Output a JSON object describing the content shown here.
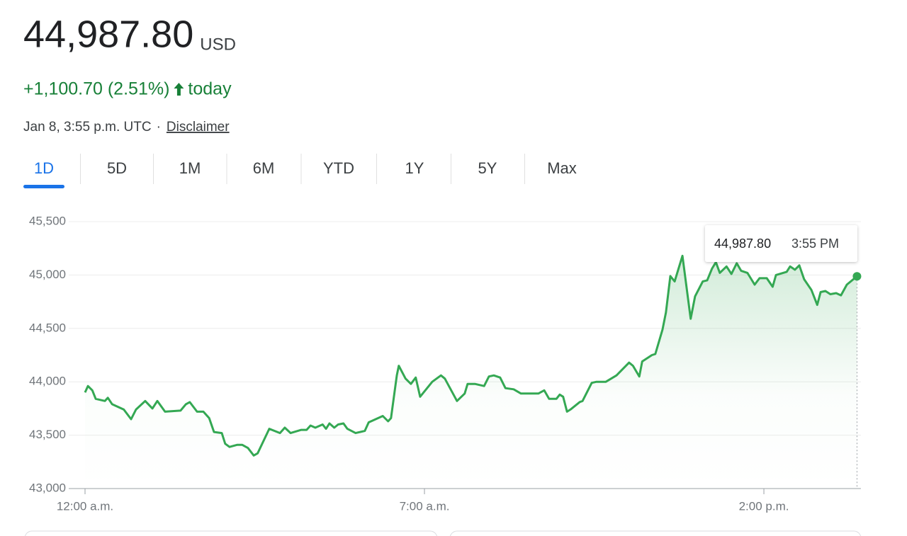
{
  "header": {
    "price": "44,987.80",
    "currency": "USD",
    "change": "+1,100.70 (2.51%)",
    "change_suffix": "today",
    "timestamp": "Jan 8, 3:55 p.m. UTC",
    "separator": "·",
    "disclaimer": "Disclaimer"
  },
  "tabs": {
    "items": [
      "1D",
      "5D",
      "1M",
      "6M",
      "YTD",
      "1Y",
      "5Y",
      "Max"
    ],
    "active": 0
  },
  "tooltip": {
    "value": "44,987.80",
    "time": "3:55 PM"
  },
  "chart_data": {
    "type": "line",
    "color": "#34a853",
    "grid": true,
    "xlim": [
      0,
      16
    ],
    "xticks": [
      {
        "value": 0,
        "label": "12:00 a.m."
      },
      {
        "value": 7,
        "label": "7:00 a.m."
      },
      {
        "value": 14,
        "label": "2:00 p.m."
      }
    ],
    "ylim": [
      43000,
      45500
    ],
    "yticks": [
      {
        "value": 43000,
        "label": "43,000"
      },
      {
        "value": 43500,
        "label": "43,500"
      },
      {
        "value": 44000,
        "label": "44,000"
      },
      {
        "value": 44500,
        "label": "44,500"
      },
      {
        "value": 45000,
        "label": "45,000"
      },
      {
        "value": 45500,
        "label": "45,500"
      }
    ],
    "x": [
      0,
      0.06,
      0.15,
      0.22,
      0.41,
      0.47,
      0.56,
      0.8,
      0.95,
      1.05,
      1.24,
      1.39,
      1.49,
      1.65,
      1.97,
      2.08,
      2.16,
      2.31,
      2.44,
      2.56,
      2.66,
      2.82,
      2.89,
      2.98,
      3.14,
      3.24,
      3.36,
      3.48,
      3.56,
      3.8,
      4.02,
      4.12,
      4.24,
      4.46,
      4.57,
      4.65,
      4.75,
      4.9,
      4.97,
      5.04,
      5.14,
      5.22,
      5.33,
      5.41,
      5.58,
      5.77,
      5.85,
      6.14,
      6.25,
      6.31,
      6.43,
      6.47,
      6.61,
      6.72,
      6.82,
      6.91,
      7.16,
      7.34,
      7.42,
      7.67,
      7.83,
      7.89,
      8.04,
      8.23,
      8.33,
      8.43,
      8.56,
      8.67,
      8.84,
      8.99,
      9.35,
      9.47,
      9.57,
      9.72,
      9.79,
      9.86,
      9.94,
      10.01,
      10.2,
      10.26,
      10.45,
      10.55,
      10.74,
      10.96,
      11.22,
      11.3,
      11.43,
      11.49,
      11.69,
      11.76,
      11.91,
      11.98,
      12.07,
      12.16,
      12.32,
      12.49,
      12.58,
      12.74,
      12.83,
      12.93,
      13.01,
      13.09,
      13.23,
      13.33,
      13.44,
      13.53,
      13.66,
      13.81,
      13.91,
      14.06,
      14.18,
      14.25,
      14.47,
      14.54,
      14.64,
      14.73,
      14.83,
      14.98,
      15.1,
      15.17,
      15.27,
      15.37,
      15.49,
      15.59,
      15.71,
      15.92
    ],
    "values": [
      43900,
      43960,
      43920,
      43840,
      43820,
      43850,
      43790,
      43740,
      43650,
      43740,
      43820,
      43750,
      43820,
      43720,
      43730,
      43790,
      43810,
      43720,
      43720,
      43660,
      43530,
      43520,
      43420,
      43390,
      43410,
      43410,
      43380,
      43310,
      43330,
      43560,
      43520,
      43570,
      43520,
      43550,
      43550,
      43590,
      43570,
      43600,
      43560,
      43610,
      43570,
      43600,
      43610,
      43560,
      43520,
      43540,
      43620,
      43680,
      43630,
      43660,
      44060,
      44150,
      44030,
      43980,
      44040,
      43860,
      44000,
      44060,
      44030,
      43820,
      43890,
      43980,
      43980,
      43960,
      44050,
      44060,
      44040,
      43940,
      43930,
      43890,
      43890,
      43920,
      43840,
      43840,
      43880,
      43860,
      43720,
      43740,
      43810,
      43820,
      43990,
      44000,
      44000,
      44060,
      44180,
      44150,
      44050,
      44190,
      44250,
      44260,
      44490,
      44650,
      44990,
      44940,
      45180,
      44590,
      44800,
      44940,
      44950,
      45060,
      45120,
      45020,
      45080,
      45010,
      45110,
      45040,
      45020,
      44910,
      44970,
      44970,
      44890,
      45000,
      45030,
      45080,
      45050,
      45090,
      44960,
      44860,
      44720,
      44840,
      44850,
      44820,
      44830,
      44810,
      44910,
      44987.8
    ]
  }
}
